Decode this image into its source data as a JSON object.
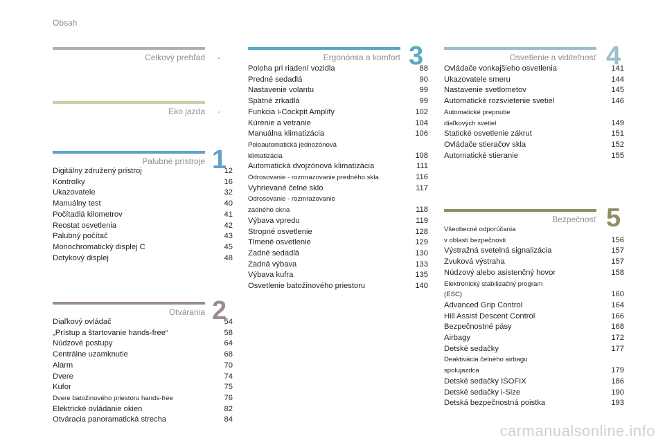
{
  "header": {
    "title": "Obsah"
  },
  "sections": {
    "overview": {
      "title": "Celkový prehľad",
      "mark": ".",
      "color": "#b6adb0"
    },
    "eco": {
      "title": "Eko jazda",
      "mark": ".",
      "color": "#c8cfa7"
    },
    "instruments": {
      "title": "Palubné prístroje",
      "mark": "1",
      "color": "#5ea3c9",
      "entries": [
        {
          "label": "Digitálny združený prístroj",
          "page": "12"
        },
        {
          "label": "Kontrolky",
          "page": "16"
        },
        {
          "label": "Ukazovatele",
          "page": "32"
        },
        {
          "label": "Manuálny test",
          "page": "40"
        },
        {
          "label": "Počítadlá kilometrov",
          "page": "41"
        },
        {
          "label": "Reostat osvetlenia",
          "page": "42"
        },
        {
          "label": "Palubný počítač",
          "page": "43"
        },
        {
          "label": "Monochromatický displej C",
          "page": "45"
        },
        {
          "label": "Dotykový displej",
          "page": "48"
        }
      ]
    },
    "access": {
      "title": "Otvárania",
      "mark": "2",
      "color": "#9b8c8f",
      "entries": [
        {
          "label": "Diaľkový ovládač",
          "page": "54"
        },
        {
          "label": "„Prístup a štartovanie hands-free“",
          "page": "58"
        },
        {
          "label": "Núdzové postupy",
          "page": "64"
        },
        {
          "label": "Centrálne uzamknutie",
          "page": "68"
        },
        {
          "label": "Alarm",
          "page": "70"
        },
        {
          "label": "Dvere",
          "page": "74"
        },
        {
          "label": "Kufor",
          "page": "75"
        },
        {
          "label": "Dvere batožinového priestoru hands-free",
          "page": "76"
        },
        {
          "label": "Elektrické ovládanie okien",
          "page": "82"
        },
        {
          "label": "Otváracia panoramatická strecha",
          "page": "84"
        }
      ]
    },
    "ergonomics": {
      "title": "Ergonómia a komfort",
      "mark": "3",
      "color": "#5aa9c4",
      "entries": [
        {
          "label": "Poloha pri riadení vozidla",
          "page": "88"
        },
        {
          "label": "Predné sedadlá",
          "page": "90"
        },
        {
          "label": "Nastavenie volantu",
          "page": "99"
        },
        {
          "label": "Spätné zrkadlá",
          "page": "99"
        },
        {
          "label": "Funkcia i-Cockpit Amplify",
          "page": "102"
        },
        {
          "label": "Kúrenie a vetranie",
          "page": "104"
        },
        {
          "label": "Manuálna klimatizácia",
          "page": "106"
        },
        {
          "label": "Poloautomatická jednozónová\n   klimatizácia",
          "page": "108"
        },
        {
          "label": "Automatická dvojzónová klimatizácia",
          "page": "111"
        },
        {
          "label": "Odrosovanie - rozmrazovanie predného skla",
          "page": "116"
        },
        {
          "label": "Vyhrievané čelné sklo",
          "page": "117"
        },
        {
          "label": "Odrosovanie - rozmrazovanie\n   zadného okna",
          "page": "118"
        },
        {
          "label": "Výbava vpredu",
          "page": "119"
        },
        {
          "label": "Stropné osvetlenie",
          "page": "128"
        },
        {
          "label": "Tlmené osvetlenie",
          "page": "129"
        },
        {
          "label": "Zadné sedadlá",
          "page": "130"
        },
        {
          "label": "Zadná výbava",
          "page": "133"
        },
        {
          "label": "Výbava kufra",
          "page": "135"
        },
        {
          "label": "Osvetlenie batožinového priestoru",
          "page": "140"
        }
      ]
    },
    "lighting": {
      "title": "Osvetlenie a viditeľnosť",
      "mark": "4",
      "color": "#9bbfc7",
      "entries": [
        {
          "label": "Ovládače vonkajšieho osvetlenia",
          "page": "141"
        },
        {
          "label": "Ukazovatele smeru",
          "page": "144"
        },
        {
          "label": "Nastavenie svetlometov",
          "page": "145"
        },
        {
          "label": "Automatické rozsvietenie svetiel",
          "page": "146"
        },
        {
          "label": "Automatické prepnutie\n   diaľkových svetiel",
          "page": "149"
        },
        {
          "label": "Statické osvetlenie zákrut",
          "page": "151"
        },
        {
          "label": "Ovládače stieračov skla",
          "page": "152"
        },
        {
          "label": "Automatické stieranie",
          "page": "155"
        }
      ]
    },
    "safety": {
      "title": "Bezpečnosť",
      "mark": "5",
      "color": "#8e9063",
      "entries": [
        {
          "label": "Všeobecné odporúčania\n   v oblasti bezpečnosti",
          "page": "156"
        },
        {
          "label": "Výstražná svetelná signalizácia",
          "page": "157"
        },
        {
          "label": "Zvuková výstraha",
          "page": "157"
        },
        {
          "label": "Núdzový alebo asistenčný hovor",
          "page": "158"
        },
        {
          "label": "Elektronický stabilizačný program\n   (ESC)",
          "page": "160"
        },
        {
          "label": "Advanced Grip Control",
          "page": "164"
        },
        {
          "label": "Hill Assist Descent Control",
          "page": "166"
        },
        {
          "label": "Bezpečnostné pásy",
          "page": "168"
        },
        {
          "label": "Airbagy",
          "page": "172"
        },
        {
          "label": "Detské sedačky",
          "page": "177"
        },
        {
          "label": "Deaktivácia čelného airbagu\n   spolujazdca",
          "page": "179"
        },
        {
          "label": "Detské sedačky ISOFIX",
          "page": "186"
        },
        {
          "label": "Detské sedačky i-Size",
          "page": "190"
        },
        {
          "label": "Detská bezpečnostná poistka",
          "page": "193"
        }
      ]
    }
  },
  "watermark": "carmanualsonline.info"
}
